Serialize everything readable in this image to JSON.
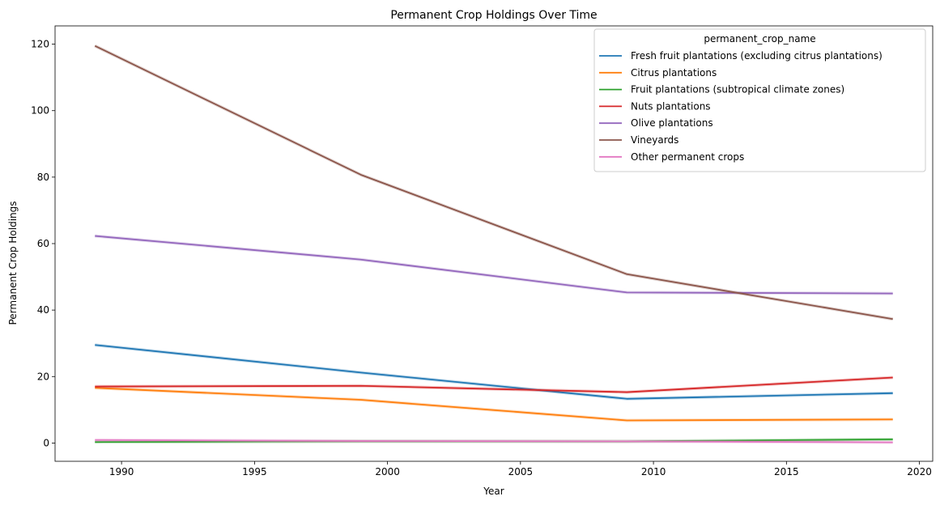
{
  "chart_data": {
    "type": "line",
    "title": "Permanent Crop Holdings Over Time",
    "xlabel": "Year",
    "ylabel": "Permanent Crop Holdings",
    "xlim": [
      1987.5,
      2020.5
    ],
    "ylim": [
      -5.5,
      125.5
    ],
    "xticks": [
      1990,
      1995,
      2000,
      2005,
      2010,
      2015,
      2020
    ],
    "yticks": [
      0,
      20,
      40,
      60,
      80,
      100,
      120
    ],
    "grid": false,
    "legend": {
      "title": "permanent_crop_name",
      "position": "top-right"
    },
    "x": [
      1989,
      1999,
      2009,
      2019
    ],
    "series": [
      {
        "name": "Fresh fruit plantations (excluding citrus plantations)",
        "color": "#1f77b4",
        "values": [
          29.5,
          21.2,
          13.3,
          15.0
        ]
      },
      {
        "name": "Citrus plantations",
        "color": "#ff7f0e",
        "values": [
          16.6,
          13.0,
          6.8,
          7.1
        ]
      },
      {
        "name": "Fruit plantations (subtropical climate zones)",
        "color": "#2ca02c",
        "values": [
          0.3,
          0.5,
          0.5,
          1.1
        ]
      },
      {
        "name": "Nuts plantations",
        "color": "#d62728",
        "values": [
          17.0,
          17.2,
          15.3,
          19.7
        ]
      },
      {
        "name": "Olive plantations",
        "color": "#9467bd",
        "values": [
          62.3,
          55.2,
          45.3,
          45.0
        ]
      },
      {
        "name": "Vineyards",
        "color": "#8c564b",
        "values": [
          119.5,
          80.7,
          50.8,
          37.3
        ]
      },
      {
        "name": "Other permanent crops",
        "color": "#e377c2",
        "values": [
          0.9,
          0.6,
          0.5,
          0.2
        ]
      }
    ]
  }
}
